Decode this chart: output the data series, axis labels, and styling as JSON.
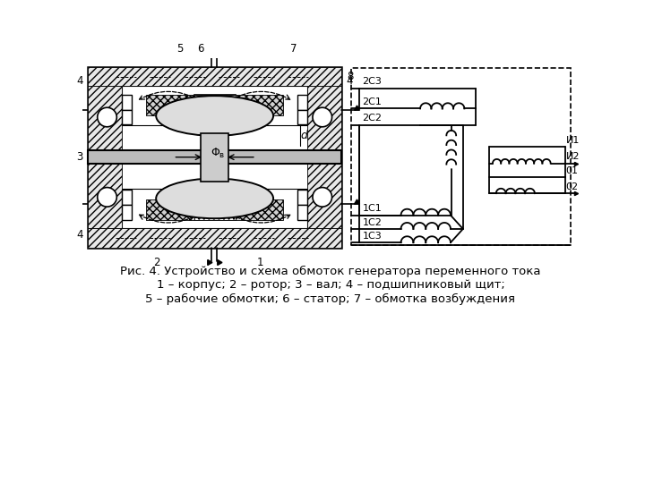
{
  "bg_color": "#ffffff",
  "title_line1": "Рис. 4. Устройство и схема обмоток генератора переменного тока",
  "title_line2": "1 – корпус; 2 – ротор; 3 – вал; 4 – подшипниковый щит;",
  "title_line3": "5 – рабочие обмотки; 6 – статор; 7 – обмотка возбуждения",
  "font_size": 9.5,
  "line_color": "#000000"
}
